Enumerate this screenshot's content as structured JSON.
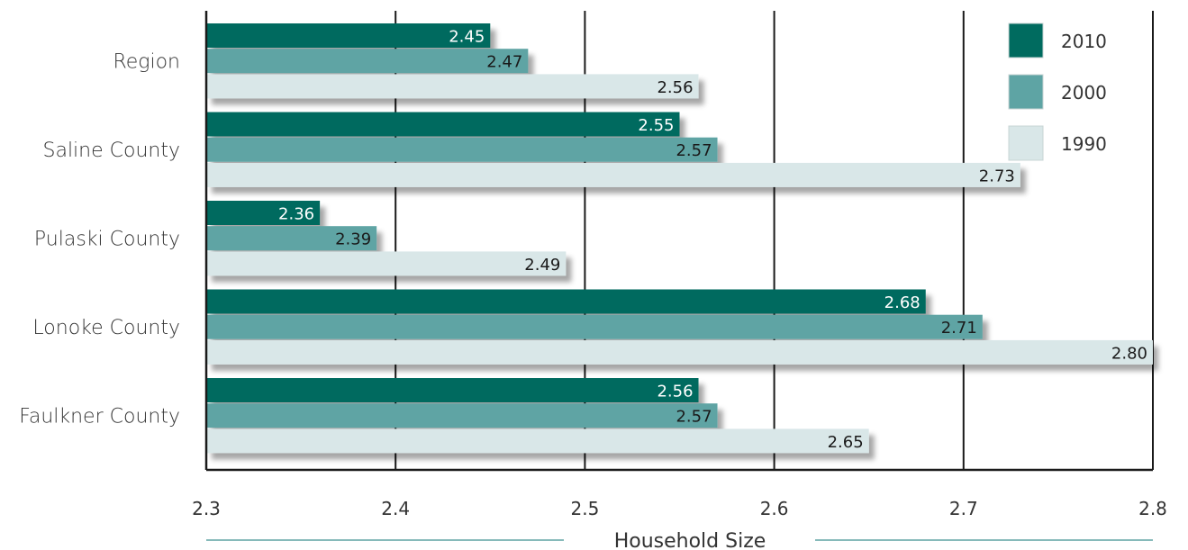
{
  "chart_data": {
    "type": "bar",
    "orientation": "horizontal",
    "title": "",
    "xlabel": "Household Size",
    "ylabel": "",
    "xlim": [
      2.3,
      2.8
    ],
    "x_ticks": [
      "2.3",
      "2.4",
      "2.5",
      "2.6",
      "2.7",
      "2.8"
    ],
    "grid": true,
    "legend_position": "top-right",
    "categories": [
      "Region",
      "Saline County",
      "Pulaski County",
      "Lonoke County",
      "Faulkner County"
    ],
    "series": [
      {
        "name": "2010",
        "color": "#006b5f",
        "label_color": "#ffffff",
        "values": [
          2.45,
          2.55,
          2.36,
          2.68,
          2.56
        ],
        "labels": [
          "2.45",
          "2.55",
          "2.36",
          "2.68",
          "2.56"
        ]
      },
      {
        "name": "2000",
        "color": "#5ea4a4",
        "label_color": "#1a1a1a",
        "values": [
          2.47,
          2.57,
          2.39,
          2.71,
          2.57
        ],
        "labels": [
          "2.47",
          "2.57",
          "2.39",
          "2.71",
          "2.57"
        ]
      },
      {
        "name": "1990",
        "color": "#d9e7e8",
        "label_color": "#1a1a1a",
        "values": [
          2.56,
          2.73,
          2.49,
          2.8,
          2.65
        ],
        "labels": [
          "2.56",
          "2.73",
          "2.49",
          "2.80",
          "2.65"
        ]
      }
    ]
  },
  "colors": {
    "axis": "#1a1a1a",
    "grid": "#1a1a1a",
    "underline": "#5ea4a4"
  }
}
